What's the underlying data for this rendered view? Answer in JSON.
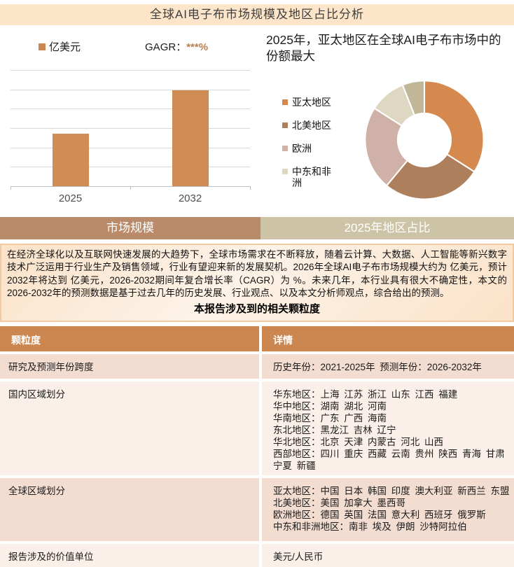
{
  "page": {
    "title": "全球AI电子布市场规模及地区占比分析"
  },
  "bar_section": {
    "series_label": "亿美元",
    "cagr_label": "GAGR：",
    "cagr_value": "***%"
  },
  "donut_section": {
    "title": "2025年，亚太地区在全球AI电子布市场中的份额最大"
  },
  "tabs": [
    {
      "label": "市场规模",
      "active": true
    },
    {
      "label": "2025年地区占比",
      "active": false
    }
  ],
  "summary": {
    "text": "在经济全球化以及互联网快速发展的大趋势下，全球市场需求在不断释放，随着云计算、大数据、人工智能等新兴数字技术广泛运用于行业生产及销售领域，行业有望迎来新的发展契机。2026年全球AI电子布市场规模大约为 亿美元，预计2032年将达到 亿美元，2026-2032期间年复合增长率（CAGR）为 %。未来几年，本行业具有很大不确定性，本文的2026-2032年的预测数据是基于过去几年的历史发展、行业观点、以及本文分析师观点，综合给出的预测。"
  },
  "table": {
    "title": "本报告涉及到的相关颗粒度",
    "headers": [
      "颗粒度",
      "详情"
    ],
    "rows": [
      {
        "label": "研究及预测年份跨度",
        "details": [
          "历史年份：2021-2025年 预测年份：2026-2032年"
        ]
      },
      {
        "label": "国内区域划分",
        "details": [
          "华东地区：上海 江苏 浙江 山东 江西 福建",
          "华中地区：湖南 湖北 河南",
          "华南地区：广东 广西 海南",
          "东北地区：黑龙江 吉林 辽宁",
          "华北地区：北京 天津 内蒙古 河北 山西",
          "西部地区：四川 重庆 西藏 云南 贵州 陕西 青海 甘肃 宁夏 新疆"
        ]
      },
      {
        "label": "全球区域划分",
        "details": [
          "亚太地区：中国 日本 韩国 印度 澳大利亚 新西兰 东盟",
          "北美地区：美国 加拿大 墨西哥",
          "欧洲地区：德国 英国 法国 意大利 西班牙 俄罗斯",
          "中东和非洲地区：南非 埃及 伊朗 沙特阿拉伯"
        ]
      },
      {
        "label": "报告涉及的价值单位",
        "details": [
          "美元/人民币"
        ]
      }
    ]
  },
  "chart_data": [
    {
      "type": "bar",
      "title": "",
      "categories": [
        "2025",
        "2032"
      ],
      "series": [
        {
          "name": "亿美元",
          "values": [
            2.7,
            4.95
          ]
        }
      ],
      "ylabel": "亿美元",
      "ylim": [
        0,
        6
      ],
      "gridline_count": 6,
      "value_labels_hidden": true,
      "bar_color": "#d08c52",
      "annotation": "GAGR：***%"
    },
    {
      "type": "pie",
      "subtype": "donut",
      "title": "2025年，亚太地区在全球AI电子布市场中的份额最大",
      "labels": [
        "亚太地区",
        "北美地区",
        "欧洲",
        "中东和非洲",
        ""
      ],
      "values_percent": [
        34,
        27,
        23,
        10,
        6
      ],
      "colors": [
        "#d6894e",
        "#ae7f5c",
        "#cfb1a7",
        "#ded8c2",
        "#c2b698"
      ],
      "hole_ratio": 0.45,
      "start_angle_deg": 0,
      "legend_position": "left",
      "legend_labels": [
        "亚太地区",
        "北美地区",
        "欧洲",
        "中东和非洲"
      ]
    }
  ],
  "theme": {
    "titlebar_bg": "#fce5c8",
    "accent": "#cc8751",
    "bar_color": "#d08c52",
    "cagr_color": "#b5824f",
    "grid_color": "#d9d9d9",
    "axis_color": "#bfbfbf",
    "tab_active_bg": "#b98b6a",
    "tab_inactive_bg": "#cdc4a7",
    "summary_border": "#f1caa2",
    "summary_bg_1": "#fbe2c8",
    "summary_bg_2": "#fdf3e8",
    "row_odd_bg": "#f3ddd1",
    "row_even_bg": "#fbf0e9"
  }
}
